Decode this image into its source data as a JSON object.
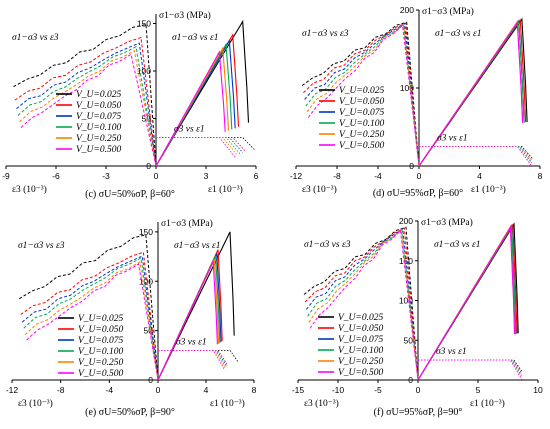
{
  "legend_series": [
    {
      "name": "V_U=0.025",
      "color": "#000000"
    },
    {
      "name": "V_U=0.050",
      "color": "#ff0000"
    },
    {
      "name": "V_U=0.075",
      "color": "#0033cc"
    },
    {
      "name": "V_U=0.100",
      "color": "#00aa55"
    },
    {
      "name": "V_U=0.250",
      "color": "#ff8000"
    },
    {
      "name": "V_U=0.500",
      "color": "#ff00ff"
    }
  ],
  "labels": {
    "y_axis": "σ1−σ3 (MPa)",
    "x_left_axis": "ε3 (10⁻³)",
    "x_right_axis": "ε1 (10⁻³)",
    "curve_left": "σ1−σ3 vs ε3",
    "curve_right": "σ1−σ3 vs ε1",
    "curve_sigma3": "σ3 vs ε1"
  },
  "chart_data": [
    {
      "type": "line",
      "caption": "(c) σU=50%σP, β=60°",
      "xlim_left": [
        -9,
        0
      ],
      "xlim_right": [
        0,
        6
      ],
      "x_ticks_left": [
        "-9",
        "-6",
        "-3"
      ],
      "x_ticks_right": [
        "0",
        "3",
        "6"
      ],
      "ylim": [
        0,
        160
      ],
      "y_ticks": [
        "0",
        "50",
        "100",
        "150"
      ],
      "peak_eps1": [
        5.2,
        4.6,
        4.4,
        4.2,
        4.0,
        3.8
      ],
      "peak_stress": [
        152,
        138,
        132,
        128,
        124,
        120
      ],
      "peak_eps3": [
        -0.6,
        -0.9,
        -1.0,
        -1.2,
        -1.3,
        -1.5
      ],
      "sigma3": 30
    },
    {
      "type": "line",
      "caption": "(d) σU=95%σP, β=60°",
      "xlim_left": [
        -12,
        0
      ],
      "xlim_right": [
        0,
        8
      ],
      "x_ticks_left": [
        "-12",
        "-8",
        "-4"
      ],
      "x_ticks_right": [
        "0",
        "4",
        "8"
      ],
      "ylim": [
        0,
        200
      ],
      "y_ticks": [
        "0",
        "100",
        "200"
      ],
      "peak_eps1": [
        6.8,
        6.7,
        6.6,
        6.6,
        6.5,
        6.5
      ],
      "peak_stress": [
        188,
        187,
        186,
        185,
        185,
        184
      ],
      "peak_eps3": [
        -1.2,
        -1.3,
        -1.4,
        -1.5,
        -1.5,
        -1.6
      ],
      "sigma3": 25
    },
    {
      "type": "line",
      "caption": "(e) σU=50%σP, β=90°",
      "xlim_left": [
        -12,
        0
      ],
      "xlim_right": [
        0,
        8
      ],
      "x_ticks_left": [
        "-12",
        "-8",
        "-4"
      ],
      "x_ticks_right": [
        "0",
        "4",
        "8"
      ],
      "ylim": [
        0,
        160
      ],
      "y_ticks": [
        "0",
        "50",
        "100",
        "150"
      ],
      "peak_eps1": [
        6.0,
        5.0,
        4.9,
        4.8,
        4.7,
        4.6
      ],
      "peak_stress": [
        150,
        132,
        128,
        126,
        122,
        120
      ],
      "peak_eps3": [
        -1.0,
        -1.2,
        -1.3,
        -1.4,
        -1.5,
        -1.6
      ],
      "sigma3": 30
    },
    {
      "type": "line",
      "caption": "(f) σU=95%σP, β=90°",
      "xlim_left": [
        -15,
        0
      ],
      "xlim_right": [
        0,
        10
      ],
      "x_ticks_left": [
        "-15",
        "-10",
        "-5"
      ],
      "x_ticks_right": [
        "0",
        "5",
        "10"
      ],
      "ylim": [
        0,
        200
      ],
      "y_ticks": [
        "0",
        "50",
        "100",
        "150",
        "200"
      ],
      "peak_eps1": [
        8.0,
        7.9,
        7.8,
        7.8,
        7.7,
        7.7
      ],
      "peak_stress": [
        196,
        195,
        194,
        193,
        193,
        192
      ],
      "peak_eps3": [
        -1.5,
        -1.7,
        -1.9,
        -2.0,
        -2.1,
        -2.2
      ],
      "sigma3": 25
    }
  ]
}
